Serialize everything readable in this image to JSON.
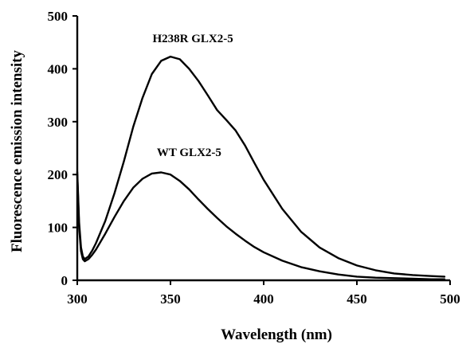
{
  "chart_data": {
    "type": "line",
    "title": "",
    "xlabel": "Wavelength (nm)",
    "ylabel": "Fluorescence emission intensity",
    "xlim": [
      300,
      500
    ],
    "ylim": [
      0,
      500
    ],
    "xticks": [
      300,
      350,
      400,
      450,
      500
    ],
    "yticks": [
      0,
      100,
      200,
      300,
      400,
      500
    ],
    "grid": false,
    "series": [
      {
        "name": "H238R GLX2-5",
        "x": [
          300,
          301,
          302,
          303,
          304,
          306,
          308,
          310,
          315,
          320,
          325,
          330,
          335,
          340,
          345,
          350,
          355,
          360,
          365,
          370,
          375,
          380,
          385,
          390,
          395,
          400,
          410,
          420,
          430,
          440,
          450,
          460,
          470,
          480,
          490,
          497
        ],
        "y": [
          205,
          110,
          62,
          45,
          40,
          45,
          56,
          70,
          112,
          165,
          225,
          290,
          345,
          390,
          415,
          423,
          418,
          400,
          377,
          350,
          322,
          303,
          283,
          255,
          222,
          190,
          135,
          92,
          62,
          42,
          28,
          19,
          13,
          10,
          8,
          7
        ]
      },
      {
        "name": "WT GLX2-5",
        "x": [
          300,
          301,
          302,
          303,
          304,
          306,
          308,
          310,
          315,
          320,
          325,
          330,
          335,
          340,
          345,
          350,
          355,
          360,
          365,
          370,
          375,
          380,
          385,
          390,
          395,
          400,
          410,
          420,
          430,
          440,
          450,
          460,
          470,
          480,
          490,
          497
        ],
        "y": [
          200,
          100,
          55,
          40,
          36,
          40,
          48,
          58,
          88,
          120,
          150,
          175,
          192,
          202,
          204,
          200,
          188,
          172,
          153,
          135,
          118,
          102,
          88,
          75,
          63,
          53,
          37,
          25,
          17,
          11,
          7,
          5,
          4,
          3,
          2,
          2
        ]
      }
    ],
    "annotations": [
      {
        "text": "H238R GLX2-5",
        "x": 362,
        "y": 450
      },
      {
        "text": "WT GLX2-5",
        "x": 360,
        "y": 235
      }
    ]
  }
}
